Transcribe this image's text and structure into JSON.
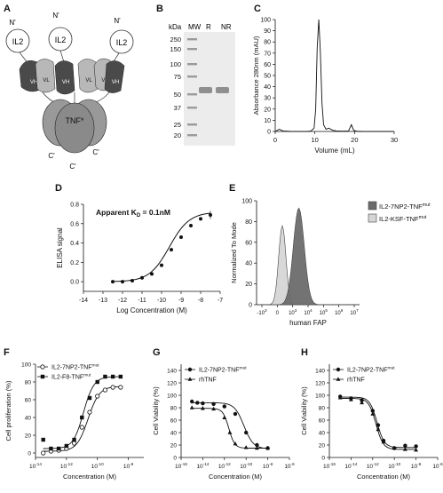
{
  "panels": {
    "A": {
      "label": "A",
      "n_terminus": "N'",
      "c_terminus": "C'",
      "il2": "IL2",
      "vh": "VH",
      "vl": "VL",
      "tnf": "TNF*"
    },
    "B": {
      "label": "B",
      "kda": "kDa",
      "lanes": [
        "MW",
        "R",
        "NR"
      ],
      "markers": [
        "250",
        "150",
        "100",
        "75",
        "50",
        "37",
        "25",
        "20"
      ]
    },
    "C": {
      "label": "C",
      "ylabel": "Absorbance 280nm (mAU)",
      "xlabel": "Volume (mL)"
    },
    "D": {
      "label": "D",
      "annotation": "Apparent K",
      "annotation_sub": "D",
      "annotation_tail": " = 0.1nM",
      "ylabel": "ELISA signal",
      "xlabel": "Log Concentration (M)"
    },
    "E": {
      "label": "E",
      "ylabel": "Normalized To Mode",
      "xlabel": "human FAP",
      "legend": [
        {
          "name": "IL2-7NP2-TNF",
          "sup": "mut",
          "color": "#6b6b6b"
        },
        {
          "name": "IL2-KSF-TNF",
          "sup": "mut",
          "color": "#d6d6d6"
        }
      ]
    },
    "F": {
      "label": "F",
      "ylabel": "Cell proliferation (%)",
      "xlabel": "Concentration (M)",
      "legend": [
        {
          "name": "IL2-7NP2-TNF",
          "sup": "mut",
          "marker": "open-circle"
        },
        {
          "name": "IL2-F8-TNF",
          "sup": "mut",
          "marker": "filled-square"
        }
      ]
    },
    "G": {
      "label": "G",
      "ylabel": "Cell Viability (%)",
      "xlabel": "Concentration (M)",
      "legend": [
        {
          "name": "IL2-7NP2-TNF",
          "sup": "mut",
          "marker": "filled-circle"
        },
        {
          "name": "rhTNF",
          "sup": "",
          "marker": "filled-triangle"
        }
      ]
    },
    "H": {
      "label": "H",
      "ylabel": "Cell Viability (%)",
      "xlabel": "Concentration (M)",
      "legend": [
        {
          "name": "IL2-7NP2-TNF",
          "sup": "mut",
          "marker": "filled-circle"
        },
        {
          "name": "rhTNF",
          "sup": "",
          "marker": "filled-triangle"
        }
      ]
    }
  },
  "chart_data": [
    {
      "panel": "C",
      "type": "line",
      "xlabel": "Volume (mL)",
      "ylabel": "Absorbance 280nm (mAU)",
      "xlim": [
        0,
        30
      ],
      "ylim": [
        0,
        100
      ],
      "xticks": [
        0,
        10,
        20,
        30
      ],
      "yticks": [
        0,
        10,
        20,
        30,
        40,
        50,
        60,
        70,
        80,
        90,
        100
      ],
      "x": [
        0,
        1,
        2,
        4,
        6,
        8,
        9,
        9.8,
        10.2,
        10.6,
        11,
        11.4,
        11.8,
        12.2,
        12.8,
        13.5,
        14.5,
        15.5,
        17,
        18.5,
        19.2,
        19.8,
        20.5,
        22,
        25,
        28,
        30
      ],
      "y": [
        0,
        2,
        0.5,
        0,
        0,
        0,
        0.3,
        3,
        20,
        75,
        100,
        70,
        25,
        6,
        2,
        3,
        1,
        0.5,
        0.2,
        0.5,
        6,
        1,
        0.2,
        0,
        0,
        0,
        0
      ]
    },
    {
      "panel": "D",
      "type": "scatter",
      "xlabel": "Log Concentration (M)",
      "ylabel": "ELISA signal",
      "xlim": [
        -14,
        -7
      ],
      "ylim": [
        -0.1,
        0.8
      ],
      "xticks": [
        -14,
        -13,
        -12,
        -11,
        -10,
        -9,
        -8,
        -7
      ],
      "yticks": [
        0.0,
        0.2,
        0.4,
        0.6,
        0.8
      ],
      "x": [
        -12.5,
        -12.0,
        -11.5,
        -11.0,
        -10.5,
        -10.0,
        -9.5,
        -9.0,
        -8.5,
        -8.0,
        -7.5
      ],
      "y": [
        0.0,
        0.0,
        0.01,
        0.04,
        0.08,
        0.17,
        0.33,
        0.46,
        0.58,
        0.65,
        0.69
      ],
      "fit": "sigmoid",
      "fit_range": [
        -12.5,
        -7.5
      ]
    },
    {
      "panel": "E",
      "type": "area",
      "xlabel": "human FAP",
      "ylabel": "Normalized To Mode",
      "ylim": [
        0,
        100
      ],
      "yticks": [
        0,
        20,
        40,
        60,
        80,
        100
      ],
      "xticks": [
        "-10",
        "0",
        "10",
        "10",
        "10",
        "10",
        "10"
      ],
      "xtick_sup": [
        "3",
        "",
        "3",
        "4",
        "5",
        "6",
        "7"
      ],
      "series": [
        {
          "name": "IL2-KSF-TNFmut",
          "peak_x": 0.25,
          "peak_y": 76,
          "width": 0.05
        },
        {
          "name": "IL2-7NP2-TNFmut",
          "peak_x": 0.41,
          "peak_y": 93,
          "width": 0.075
        }
      ]
    },
    {
      "panel": "F",
      "type": "scatter",
      "xlabel": "Concentration (M)",
      "ylabel": "Cell proliferation (%)",
      "xlim": [
        -14,
        -7
      ],
      "ylim": [
        -5,
        100
      ],
      "xticks": [
        -14,
        -12,
        -10,
        -8
      ],
      "yticks": [
        0,
        20,
        40,
        60,
        80,
        100
      ],
      "series": [
        {
          "name": "IL2-7NP2-TNFmut",
          "x": [
            -13.5,
            -13.0,
            -12.5,
            -12.0,
            -11.5,
            -11.0,
            -10.5,
            -10.0,
            -9.5,
            -9.0,
            -8.5
          ],
          "y": [
            0,
            2,
            3,
            5,
            11,
            29,
            46,
            64,
            71,
            74,
            74
          ]
        },
        {
          "name": "IL2-F8-TNFmut",
          "x": [
            -13.5,
            -13.0,
            -12.5,
            -12.0,
            -11.5,
            -11.0,
            -10.5,
            -10.0,
            -9.5,
            -9.0,
            -8.5
          ],
          "y": [
            15,
            5,
            5,
            8,
            15,
            40,
            62,
            80,
            86,
            86,
            86
          ]
        }
      ]
    },
    {
      "panel": "G",
      "type": "scatter",
      "xlabel": "Concentration (M)",
      "ylabel": "Cell Viability (%)",
      "xlim": [
        -16,
        -6
      ],
      "ylim": [
        0,
        150
      ],
      "xticks": [
        -16,
        -14,
        -12,
        -10,
        -8,
        -6
      ],
      "yticks": [
        0,
        20,
        40,
        60,
        80,
        100,
        120,
        140
      ],
      "series": [
        {
          "name": "IL2-7NP2-TNFmut",
          "x": [
            -15.0,
            -14.5,
            -14.0,
            -13.0,
            -12.0,
            -11.0,
            -10.0,
            -9.0,
            -8.0
          ],
          "y": [
            90,
            88,
            87,
            86,
            82,
            70,
            40,
            20,
            15
          ]
        },
        {
          "name": "rhTNF",
          "x": [
            -15.0,
            -14.0,
            -13.0,
            -12.0,
            -11.5,
            -11.0,
            -10.0,
            -9.0,
            -8.0
          ],
          "y": [
            80,
            79,
            78,
            64,
            40,
            22,
            16,
            15,
            15
          ]
        }
      ]
    },
    {
      "panel": "H",
      "type": "scatter",
      "xlabel": "Concentration (M)",
      "ylabel": "Cell Viability (%)",
      "xlim": [
        -16,
        -6
      ],
      "ylim": [
        0,
        150
      ],
      "xticks": [
        -16,
        -14,
        -12,
        -10,
        -8,
        -6
      ],
      "yticks": [
        0,
        20,
        40,
        60,
        80,
        100,
        120,
        140
      ],
      "series": [
        {
          "name": "IL2-7NP2-TNFmut",
          "x": [
            -15.0,
            -14.0,
            -13.0,
            -12.0,
            -11.5,
            -11.0,
            -10.0,
            -9.0,
            -8.0
          ],
          "y": [
            98,
            95,
            92,
            75,
            52,
            27,
            15,
            19,
            18
          ]
        },
        {
          "name": "rhTNF",
          "x": [
            -15.0,
            -14.0,
            -13.0,
            -12.0,
            -11.5,
            -11.0,
            -10.0,
            -9.0,
            -8.0
          ],
          "y": [
            96,
            93,
            88,
            70,
            45,
            25,
            15,
            13,
            12
          ]
        }
      ]
    }
  ]
}
